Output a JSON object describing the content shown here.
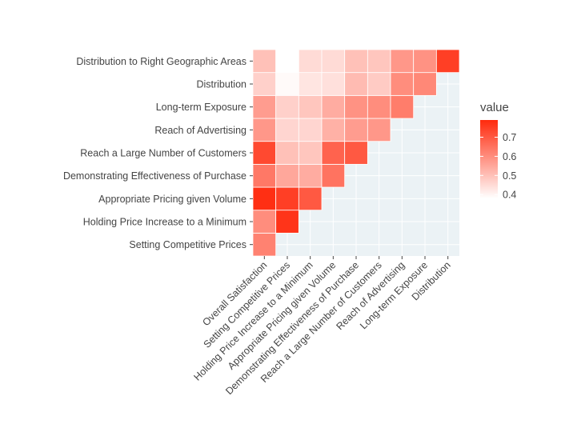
{
  "chart_data": {
    "type": "heatmap",
    "x_categories": [
      "Overall Satisfaction",
      "Setting Competitive Prices",
      "Holding Price Increase to a Minimum",
      "Appropriate Pricing given Volume",
      "Demonstrating Effectiveness of Purchase",
      "Reach a Large Number of Customers",
      "Reach of Advertising",
      "Long-term Exposure",
      "Distribution"
    ],
    "y_categories": [
      "Setting Competitive Prices",
      "Holding Price Increase to a Minimum",
      "Appropriate Pricing given Volume",
      "Demonstrating Effectiveness of Purchase",
      "Reach a Large Number of Customers",
      "Reach of Advertising",
      "Long-term Exposure",
      "Distribution",
      "Distribution to Right Geographic Areas"
    ],
    "values": [
      [
        0.62,
        null,
        null,
        null,
        null,
        null,
        null,
        null,
        null
      ],
      [
        0.6,
        0.77,
        null,
        null,
        null,
        null,
        null,
        null,
        null
      ],
      [
        0.78,
        0.75,
        0.7,
        null,
        null,
        null,
        null,
        null,
        null
      ],
      [
        0.64,
        0.55,
        0.54,
        0.65,
        null,
        null,
        null,
        null,
        null
      ],
      [
        0.73,
        0.5,
        0.49,
        0.68,
        0.7,
        null,
        null,
        null,
        null
      ],
      [
        0.58,
        0.46,
        0.46,
        0.53,
        0.57,
        0.58,
        null,
        null,
        null
      ],
      [
        0.57,
        0.47,
        0.49,
        0.54,
        0.59,
        0.6,
        0.63,
        null,
        null
      ],
      [
        0.47,
        0.39,
        0.43,
        0.44,
        0.51,
        0.48,
        0.6,
        0.61,
        null
      ],
      [
        0.5,
        0.38,
        0.45,
        0.45,
        0.5,
        0.49,
        0.58,
        0.59,
        0.75
      ]
    ],
    "legend": {
      "title": "value",
      "ticks": [
        0.4,
        0.5,
        0.6,
        0.7
      ],
      "range": [
        0.38,
        0.79
      ],
      "low_color": "#ffffff",
      "high_color": "#ff2a0d",
      "placement": "right"
    },
    "panel_background": "#ebf2f5",
    "grid": true
  }
}
